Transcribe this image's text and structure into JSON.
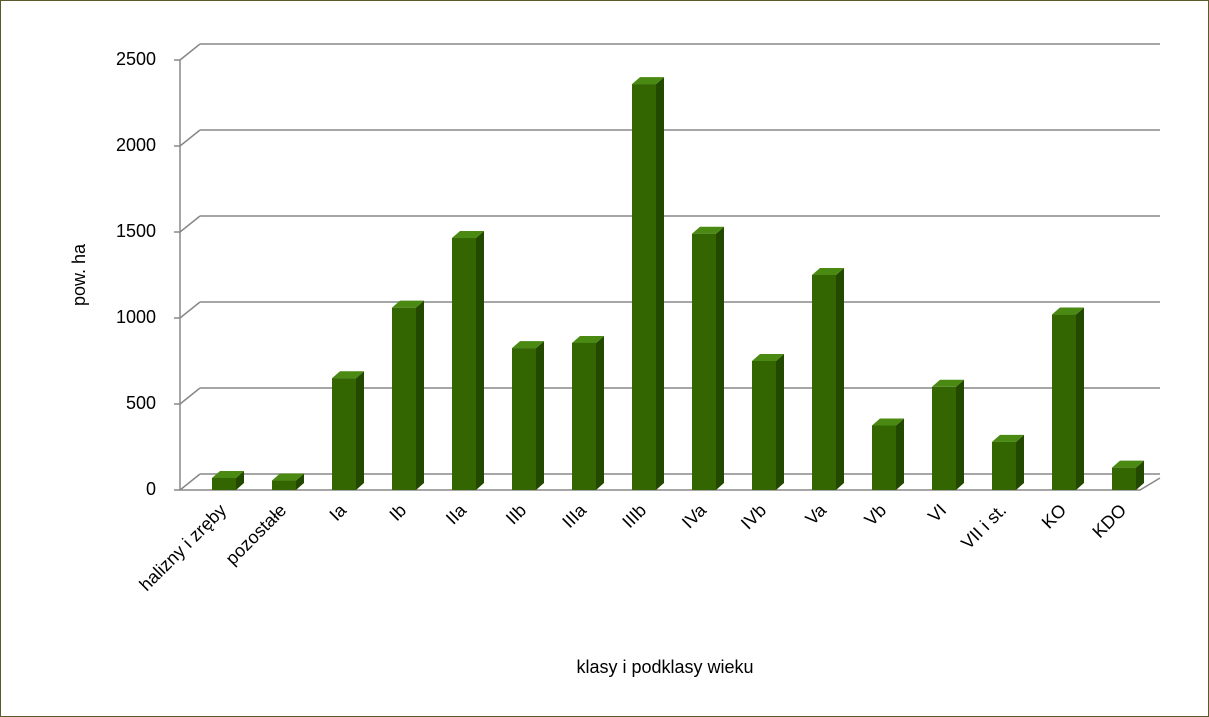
{
  "chart_data": {
    "type": "bar3d",
    "xlabel": "klasy i podklasy wieku",
    "ylabel": "pow. ha",
    "categories": [
      "halizny i zręby",
      "pozostałe",
      "Ia",
      "Ib",
      "IIa",
      "IIb",
      "IIIa",
      "IIIb",
      "IVa",
      "IVb",
      "Va",
      "Vb",
      "VI",
      "VII i st.",
      "KO",
      "KDO"
    ],
    "values": [
      70,
      55,
      650,
      1060,
      1465,
      825,
      855,
      2360,
      1490,
      750,
      1250,
      375,
      600,
      280,
      1020,
      130
    ],
    "color": "#336600",
    "ylim": [
      0,
      2500
    ],
    "yticks": [
      0,
      500,
      1000,
      1500,
      2000,
      2500
    ],
    "grid": true
  }
}
